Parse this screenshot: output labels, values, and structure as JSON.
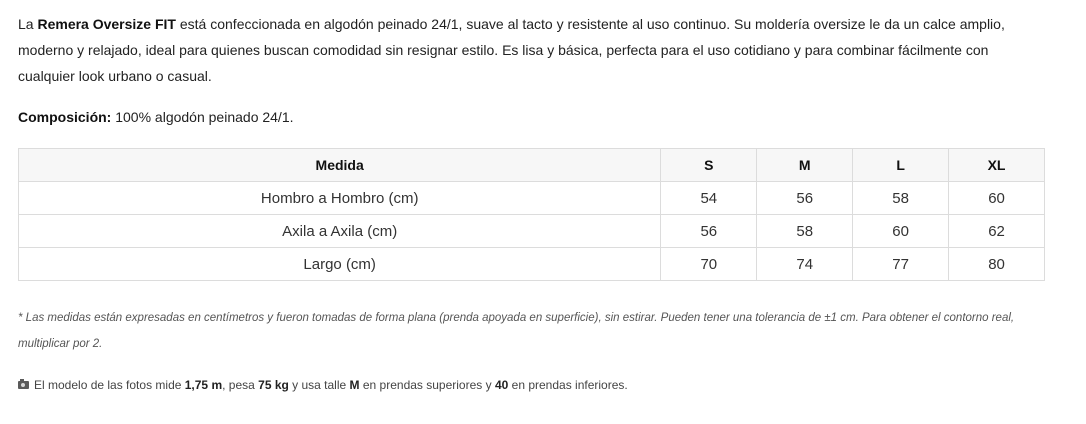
{
  "description": {
    "intro": "La ",
    "product_name": "Remera Oversize FIT",
    "body": " está confeccionada en algodón peinado 24/1, suave al tacto y resistente al uso continuo. Su moldería oversize le da un calce amplio, moderno y relajado, ideal para quienes buscan comodidad sin resignar estilo. Es lisa y básica, perfecta para el uso cotidiano y para combinar fácilmente con cualquier look urbano o casual."
  },
  "composition": {
    "label": "Composición:",
    "value": " 100% algodón peinado 24/1."
  },
  "size_table": {
    "headers": [
      "Medida",
      "S",
      "M",
      "L",
      "XL"
    ],
    "rows": [
      {
        "label": "Hombro a Hombro (cm)",
        "values": [
          "54",
          "56",
          "58",
          "60"
        ]
      },
      {
        "label": "Axila a Axila (cm)",
        "values": [
          "56",
          "58",
          "60",
          "62"
        ]
      },
      {
        "label": "Largo (cm)",
        "values": [
          "70",
          "74",
          "77",
          "80"
        ]
      }
    ]
  },
  "note": "* Las medidas están expresadas en centímetros y fueron tomadas de forma plana (prenda apoyada en superficie), sin estirar. Pueden tener una tolerancia de ±1 cm. Para obtener el contorno real, multiplicar por 2.",
  "model_info": {
    "icon": "camera-icon",
    "t1": "El modelo de las fotos mide ",
    "height": "1,75 m",
    "t2": ", pesa ",
    "weight": "75 kg",
    "t3": " y usa talle ",
    "top_size": "M",
    "t4": " en prendas superiores y ",
    "bottom_size": "40",
    "t5": " en prendas inferiores."
  }
}
